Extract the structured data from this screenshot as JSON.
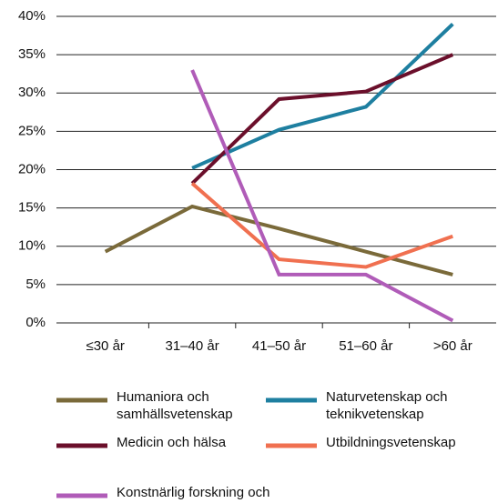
{
  "chart_data": {
    "type": "line",
    "categories": [
      "≤30 år",
      "31–40 år",
      "41–50 år",
      "51–60 år",
      ">60 år"
    ],
    "series": [
      {
        "name": "Humaniora och samhällsvetenskap",
        "color": "#7a6a3a",
        "values": [
          9.3,
          15.2,
          12.3,
          9.3,
          6.3
        ]
      },
      {
        "name": "Naturvetenskap och teknikvetenskap",
        "color": "#1e7fa0",
        "values": [
          null,
          20.2,
          25.2,
          28.2,
          39
        ]
      },
      {
        "name": "Medicin och hälsa",
        "color": "#6b0f2b",
        "values": [
          null,
          18.2,
          29.2,
          30.2,
          35
        ]
      },
      {
        "name": "Utbildningsvetenskap",
        "color": "#f07050",
        "values": [
          null,
          18.2,
          8.3,
          7.3,
          11.3
        ]
      },
      {
        "name": "Konstnärlig forskning och utveckling",
        "color": "#b05cb8",
        "values": [
          null,
          33,
          6.3,
          6.3,
          0.3
        ]
      }
    ],
    "ylim": [
      0,
      40
    ],
    "yticks": [
      {
        "value": 0,
        "label": "0%"
      },
      {
        "value": 5,
        "label": "5%"
      },
      {
        "value": 10,
        "label": "10%"
      },
      {
        "value": 15,
        "label": "15%"
      },
      {
        "value": 20,
        "label": "20%"
      },
      {
        "value": 25,
        "label": "25%"
      },
      {
        "value": 30,
        "label": "30%"
      },
      {
        "value": 35,
        "label": "35%"
      },
      {
        "value": 40,
        "label": "40%"
      }
    ],
    "grid": true
  }
}
